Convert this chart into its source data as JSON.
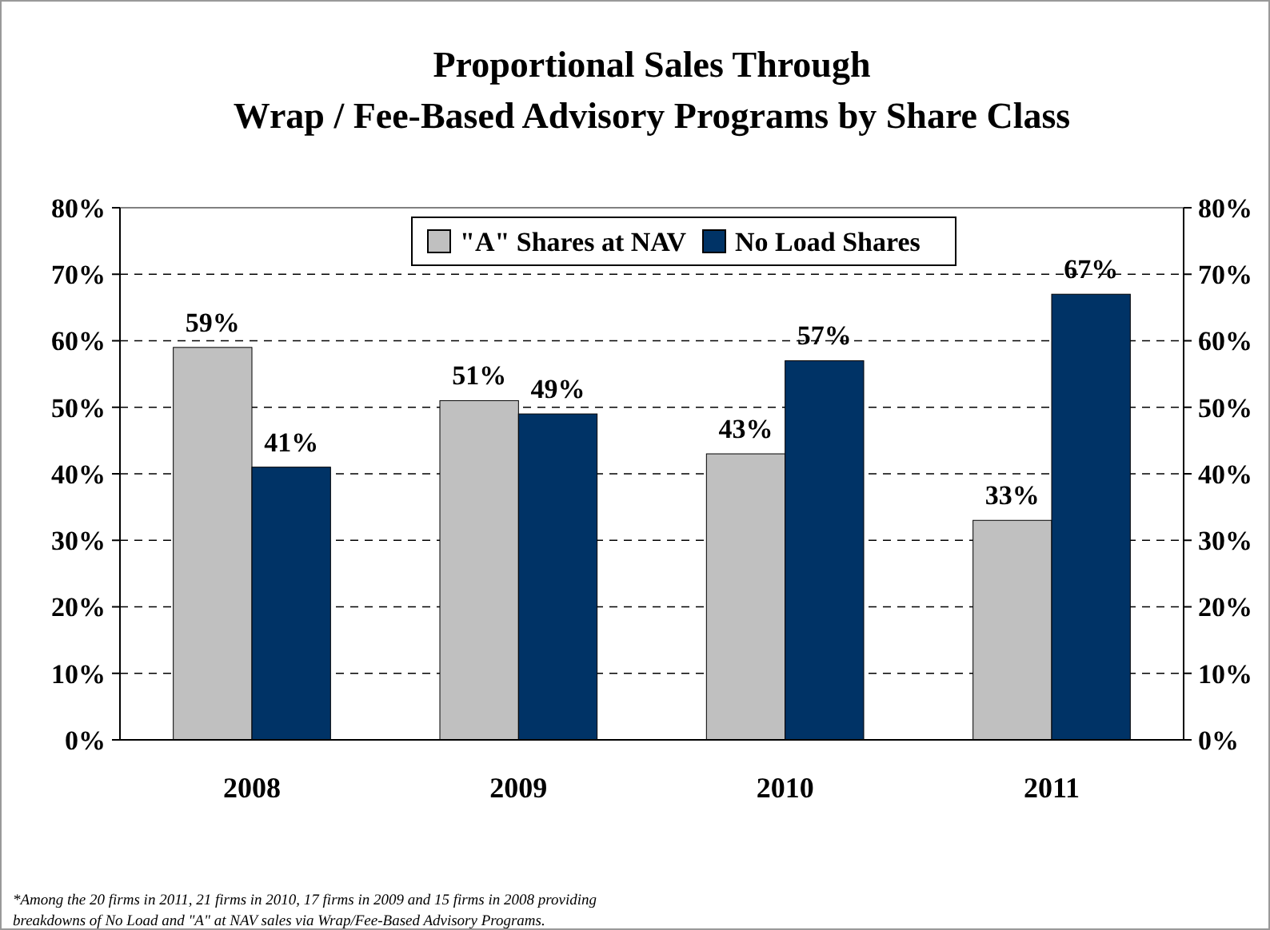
{
  "chart_data": {
    "type": "bar",
    "title": "Proportional Sales Through\nWrap / Fee-Based Advisory Programs by Share Class",
    "categories": [
      "2008",
      "2009",
      "2010",
      "2011"
    ],
    "series": [
      {
        "name": "\"A\" Shares at NAV",
        "color": "#c0c0c0",
        "values": [
          59,
          51,
          43,
          33
        ],
        "value_labels": [
          "59%",
          "51%",
          "43%",
          "33%"
        ]
      },
      {
        "name": "No Load Shares",
        "color": "#003366",
        "values": [
          41,
          49,
          57,
          67
        ],
        "value_labels": [
          "41%",
          "49%",
          "57%",
          "67%"
        ]
      }
    ],
    "ylim": [
      0,
      80
    ],
    "yticks": [
      {
        "value": 0,
        "label": "0%"
      },
      {
        "value": 10,
        "label": "10%"
      },
      {
        "value": 20,
        "label": "20%"
      },
      {
        "value": 30,
        "label": "30%"
      },
      {
        "value": 40,
        "label": "40%"
      },
      {
        "value": 50,
        "label": "50%"
      },
      {
        "value": 60,
        "label": "60%"
      },
      {
        "value": 70,
        "label": "70%"
      },
      {
        "value": 80,
        "label": "80%"
      }
    ],
    "y2lim": [
      0,
      80
    ],
    "y2ticks": [
      {
        "value": 0,
        "label": "0%"
      },
      {
        "value": 10,
        "label": "10%"
      },
      {
        "value": 20,
        "label": "20%"
      },
      {
        "value": 30,
        "label": "30%"
      },
      {
        "value": 40,
        "label": "40%"
      },
      {
        "value": 50,
        "label": "50%"
      },
      {
        "value": 60,
        "label": "60%"
      },
      {
        "value": 70,
        "label": "70%"
      },
      {
        "value": 80,
        "label": "80%"
      }
    ],
    "grid": "y",
    "legend": "top",
    "annotations": [
      "*Among the 20 firms in 2011, 21 firms in 2010, 17 firms in 2009 and 15 firms in 2008 providing",
      "breakdowns of No Load and \"A\" at NAV sales via Wrap/Fee-Based Advisory Programs."
    ]
  }
}
